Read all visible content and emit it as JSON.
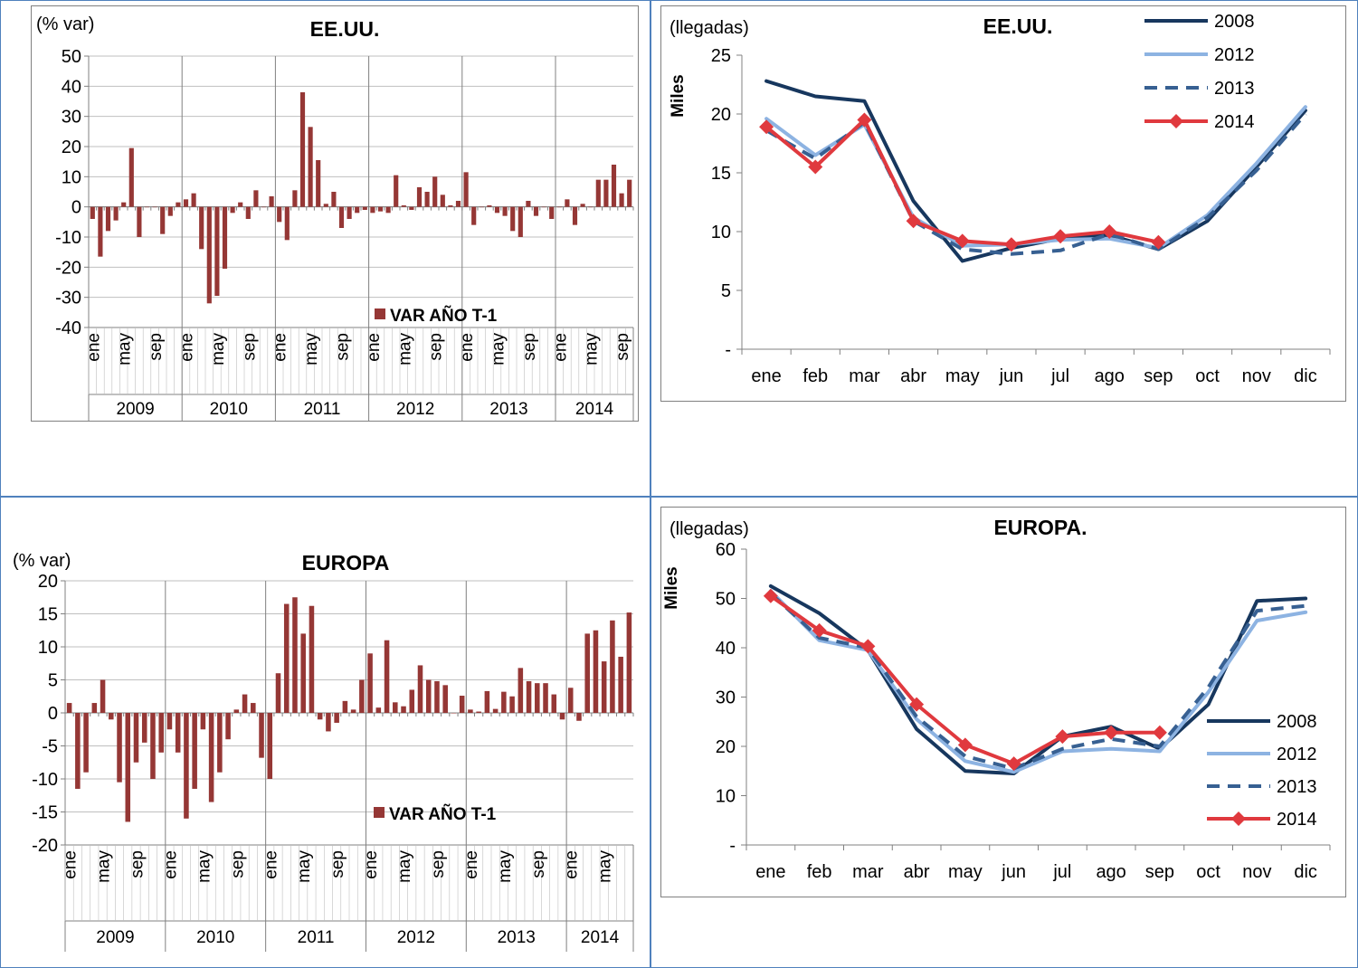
{
  "chart_data": [
    {
      "type": "bar",
      "title": "EE.UU.",
      "ylabel": "(% var)",
      "ylim": [
        -40,
        50
      ],
      "yticks": [
        "50",
        "40",
        "30",
        "20",
        "10",
        "0",
        "-10",
        "-20",
        "-30",
        "-40"
      ],
      "month_labels": [
        "ene",
        "may",
        "sep"
      ],
      "years": [
        "2009",
        "2010",
        "2011",
        "2012",
        "2013",
        "2014"
      ],
      "series": [
        {
          "name": "VAR AÑO T-1",
          "color": "#953735",
          "values": [
            -4,
            -16.5,
            -8,
            -4.5,
            1.5,
            19.5,
            -10,
            0,
            0,
            -9,
            -3,
            1.5,
            2.5,
            4.5,
            -14,
            -32,
            -29.5,
            -20.5,
            -2,
            1.5,
            -4,
            5.5,
            0,
            3.5,
            -5,
            -11,
            5.5,
            38,
            26.5,
            15.5,
            1,
            5,
            -7,
            -4,
            -2,
            -1,
            -2,
            -1.5,
            -2,
            10.5,
            0.5,
            -1,
            6.5,
            5,
            10,
            4,
            0.5,
            2,
            11.5,
            -6,
            0,
            0.5,
            -2,
            -3,
            -8,
            -10,
            2,
            -3,
            0,
            -4,
            0,
            2.5,
            -6,
            1,
            0,
            9,
            9,
            14,
            4.5,
            9
          ]
        }
      ],
      "legend": "bottom-right"
    },
    {
      "type": "line",
      "title": "EE.UU.",
      "ylabel": "Miles",
      "unit_note": "(llegadas)",
      "categories": [
        "ene",
        "feb",
        "mar",
        "abr",
        "may",
        "jun",
        "jul",
        "ago",
        "sep",
        "oct",
        "nov",
        "dic"
      ],
      "ylim": [
        0,
        25
      ],
      "yticks": [
        "25",
        "20",
        "15",
        "10",
        "5",
        "-"
      ],
      "legend": "top-right",
      "series": [
        {
          "name": "2008",
          "color": "#17375e",
          "dash": false,
          "marker": false,
          "values": [
            22.8,
            21.5,
            21.1,
            12.6,
            7.5,
            8.6,
            9.4,
            9.7,
            8.5,
            10.9,
            15.5,
            20.3
          ]
        },
        {
          "name": "2012",
          "color": "#8db3e2",
          "dash": false,
          "marker": false,
          "values": [
            19.6,
            16.5,
            19.1,
            11.2,
            8.8,
            8.9,
            9.3,
            9.4,
            8.6,
            11.4,
            15.8,
            20.6
          ]
        },
        {
          "name": "2013",
          "color": "#376092",
          "dash": true,
          "marker": false,
          "values": [
            18.6,
            16.2,
            19.3,
            10.9,
            8.5,
            8.1,
            8.4,
            9.8,
            8.5,
            11.2,
            15.2,
            20.0
          ]
        },
        {
          "name": "2014",
          "color": "#e0393e",
          "dash": false,
          "marker": true,
          "values": [
            18.9,
            15.5,
            19.5,
            10.9,
            9.2,
            8.9,
            9.6,
            10.0,
            9.1,
            null,
            null,
            null
          ]
        }
      ]
    },
    {
      "type": "bar",
      "title": "EUROPA",
      "ylabel": "(% var)",
      "ylim": [
        -20,
        20
      ],
      "yticks": [
        "20",
        "15",
        "10",
        "5",
        "0",
        "-5",
        "-10",
        "-15",
        "-20"
      ],
      "month_labels": [
        "ene",
        "may",
        "sep"
      ],
      "years": [
        "2009",
        "2010",
        "2011",
        "2012",
        "2013",
        "2014"
      ],
      "series": [
        {
          "name": "VAR AÑO T-1",
          "color": "#953735",
          "values": [
            1.5,
            -11.5,
            -9,
            1.5,
            5,
            -1,
            -10.5,
            -16.5,
            -7.5,
            -4.5,
            -10,
            -6,
            -2.5,
            -6,
            -16,
            -11.5,
            -2.5,
            -13.5,
            -9,
            -4,
            0.5,
            2.8,
            1.5,
            -6.8,
            -10,
            6,
            16.5,
            17.5,
            12,
            16.2,
            -1,
            -2.8,
            -1.5,
            1.8,
            0.5,
            5,
            9,
            0.8,
            11,
            1.6,
            1,
            3.5,
            7.2,
            5,
            4.8,
            4.2,
            0,
            2.6,
            0.5,
            0.2,
            3.3,
            0.6,
            3.2,
            2.5,
            6.8,
            4.8,
            4.5,
            4.5,
            2.8,
            -1,
            3.8,
            -1.2,
            12,
            12.5,
            7.8,
            14,
            8.5,
            15.2
          ]
        }
      ],
      "legend": "bottom-right"
    },
    {
      "type": "line",
      "title": "EUROPA.",
      "ylabel": "Miles",
      "unit_note": "(llegadas)",
      "categories": [
        "ene",
        "feb",
        "mar",
        "abr",
        "may",
        "jun",
        "jul",
        "ago",
        "sep",
        "oct",
        "nov",
        "dic"
      ],
      "ylim": [
        0,
        60
      ],
      "yticks": [
        "60",
        "50",
        "40",
        "30",
        "20",
        "10",
        "-"
      ],
      "legend": "right",
      "series": [
        {
          "name": "2008",
          "color": "#17375e",
          "dash": false,
          "marker": false,
          "values": [
            52.5,
            47,
            39.5,
            23.5,
            15,
            14.5,
            22,
            24,
            19.5,
            28.5,
            49.5,
            50
          ]
        },
        {
          "name": "2012",
          "color": "#8db3e2",
          "dash": false,
          "marker": false,
          "values": [
            51.5,
            41.5,
            39.5,
            25.5,
            17,
            14.8,
            19,
            19.5,
            19,
            31,
            45.5,
            47.2
          ]
        },
        {
          "name": "2013",
          "color": "#376092",
          "dash": true,
          "marker": false,
          "values": [
            51,
            42,
            40,
            26,
            18,
            15.5,
            19.5,
            21.5,
            20,
            32,
            47.5,
            48.5
          ]
        },
        {
          "name": "2014",
          "color": "#e0393e",
          "dash": false,
          "marker": true,
          "values": [
            50.5,
            43.5,
            40.3,
            28.5,
            20.3,
            16.5,
            22,
            22.8,
            22.8,
            null,
            null,
            null
          ]
        }
      ]
    }
  ]
}
